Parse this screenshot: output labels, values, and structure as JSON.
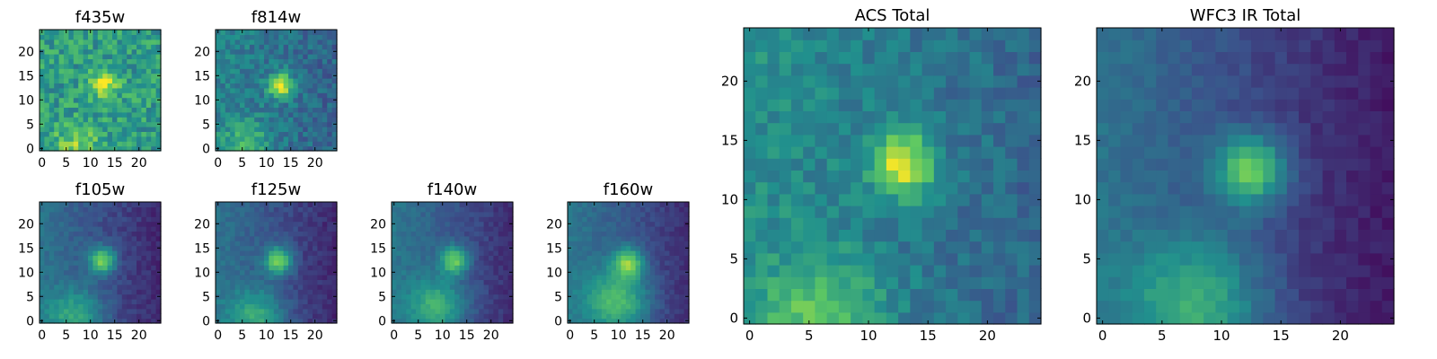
{
  "figure": {
    "colormap": [
      "#440154",
      "#3b528b",
      "#21908d",
      "#5dc863",
      "#fde725"
    ]
  },
  "chart_data": [
    {
      "type": "heatmap",
      "title": "f435w",
      "nx": 25,
      "ny": 25,
      "xlim": [
        0,
        24
      ],
      "ylim": [
        0,
        24
      ],
      "x_ticks": [
        0,
        5,
        10,
        15,
        20
      ],
      "y_ticks": [
        0,
        5,
        10,
        15,
        20
      ],
      "source": {
        "x": 13,
        "y": 13.5,
        "sigma": 2.0,
        "peak": 0.42
      },
      "background": 0.55,
      "noise": 0.32,
      "halo": {
        "x": 7,
        "y": 0,
        "sigma": 3.5,
        "amp": 0.25
      },
      "gradient": 0.0,
      "seed": 11
    },
    {
      "type": "heatmap",
      "title": "f814w",
      "nx": 25,
      "ny": 25,
      "xlim": [
        0,
        24
      ],
      "ylim": [
        0,
        24
      ],
      "x_ticks": [
        0,
        5,
        10,
        15,
        20
      ],
      "y_ticks": [
        0,
        5,
        10,
        15,
        20
      ],
      "source": {
        "x": 13,
        "y": 13,
        "sigma": 1.8,
        "peak": 0.6
      },
      "background": 0.45,
      "noise": 0.22,
      "halo": {
        "x": 6,
        "y": 1,
        "sigma": 3.5,
        "amp": 0.25
      },
      "gradient": 0.15,
      "seed": 23
    },
    {
      "type": "heatmap",
      "title": "f105w",
      "nx": 25,
      "ny": 25,
      "xlim": [
        0,
        24
      ],
      "ylim": [
        0,
        24
      ],
      "x_ticks": [
        0,
        5,
        10,
        15,
        20
      ],
      "y_ticks": [
        0,
        5,
        10,
        15,
        20
      ],
      "source": {
        "x": 12.5,
        "y": 12.5,
        "sigma": 1.9,
        "peak": 0.55
      },
      "background": 0.38,
      "noise": 0.1,
      "halo": {
        "x": 7,
        "y": 1,
        "sigma": 4.0,
        "amp": 0.3
      },
      "gradient": 0.3,
      "seed": 37
    },
    {
      "type": "heatmap",
      "title": "f125w",
      "nx": 25,
      "ny": 25,
      "xlim": [
        0,
        24
      ],
      "ylim": [
        0,
        24
      ],
      "x_ticks": [
        0,
        5,
        10,
        15,
        20
      ],
      "y_ticks": [
        0,
        5,
        10,
        15,
        20
      ],
      "source": {
        "x": 12.5,
        "y": 12.5,
        "sigma": 2.0,
        "peak": 0.55
      },
      "background": 0.38,
      "noise": 0.1,
      "halo": {
        "x": 8,
        "y": 1,
        "sigma": 4.0,
        "amp": 0.32
      },
      "gradient": 0.3,
      "seed": 41
    },
    {
      "type": "heatmap",
      "title": "f140w",
      "nx": 25,
      "ny": 25,
      "xlim": [
        0,
        24
      ],
      "ylim": [
        0,
        24
      ],
      "x_ticks": [
        0,
        5,
        10,
        15,
        20
      ],
      "y_ticks": [
        0,
        5,
        10,
        15,
        20
      ],
      "source": {
        "x": 12.5,
        "y": 12.5,
        "sigma": 2.0,
        "peak": 0.5
      },
      "background": 0.4,
      "noise": 0.09,
      "halo": {
        "x": 9,
        "y": 3,
        "sigma": 4.0,
        "amp": 0.35
      },
      "gradient": 0.3,
      "seed": 53
    },
    {
      "type": "heatmap",
      "title": "f160w",
      "nx": 25,
      "ny": 25,
      "xlim": [
        0,
        24
      ],
      "ylim": [
        0,
        24
      ],
      "x_ticks": [
        0,
        5,
        10,
        15,
        20
      ],
      "y_ticks": [
        0,
        5,
        10,
        15,
        20
      ],
      "source": {
        "x": 12,
        "y": 12,
        "sigma": 2.2,
        "peak": 0.5
      },
      "background": 0.4,
      "noise": 0.08,
      "halo": {
        "x": 10,
        "y": 4,
        "sigma": 4.5,
        "amp": 0.4
      },
      "gradient": 0.3,
      "seed": 67
    },
    {
      "type": "heatmap",
      "title": "ACS Total",
      "nx": 25,
      "ny": 25,
      "xlim": [
        0,
        24
      ],
      "ylim": [
        0,
        24
      ],
      "x_ticks": [
        0,
        5,
        10,
        15,
        20
      ],
      "y_ticks": [
        0,
        5,
        10,
        15,
        20
      ],
      "source": {
        "x": 13,
        "y": 13,
        "sigma": 1.9,
        "peak": 0.55
      },
      "background": 0.5,
      "noise": 0.18,
      "halo": {
        "x": 6,
        "y": 0,
        "sigma": 3.5,
        "amp": 0.3
      },
      "gradient": 0.2,
      "seed": 79
    },
    {
      "type": "heatmap",
      "title": "WFC3 IR Total",
      "nx": 25,
      "ny": 25,
      "xlim": [
        0,
        24
      ],
      "ylim": [
        0,
        24
      ],
      "x_ticks": [
        0,
        5,
        10,
        15,
        20
      ],
      "y_ticks": [
        0,
        5,
        10,
        15,
        20
      ],
      "source": {
        "x": 12.5,
        "y": 12.5,
        "sigma": 2.0,
        "peak": 0.55
      },
      "background": 0.38,
      "noise": 0.08,
      "halo": {
        "x": 8,
        "y": 1,
        "sigma": 4.0,
        "amp": 0.35
      },
      "gradient": 0.35,
      "seed": 97
    }
  ]
}
